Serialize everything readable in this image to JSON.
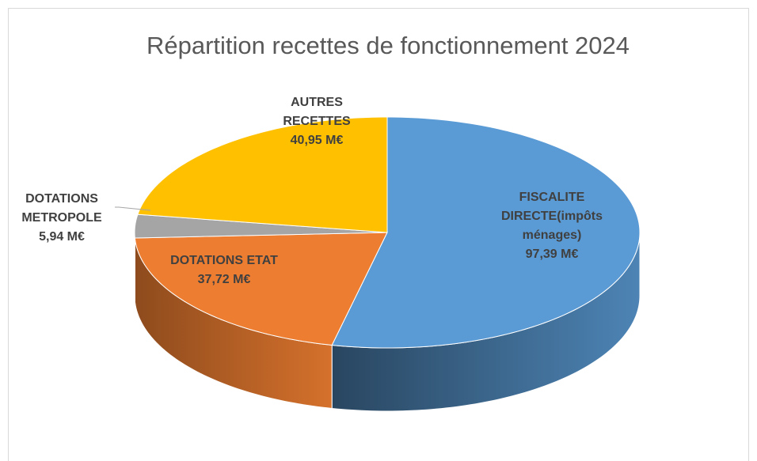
{
  "chart_data": {
    "type": "pie",
    "title": "Répartition recettes de fonctionnement 2024",
    "categories": [
      "FISCALITE DIRECTE(impôts ménages)",
      "DOTATIONS ETAT",
      "DOTATIONS METROPOLE",
      "AUTRES RECETTES"
    ],
    "values": [
      97.39,
      37.72,
      5.94,
      40.95
    ],
    "value_labels": [
      "97,39 M€",
      "37,72 M€",
      "5,94 M€",
      "40,95 M€"
    ],
    "colors": [
      "#5b9bd5",
      "#ed7d31",
      "#a5a5a5",
      "#ffc000"
    ]
  }
}
